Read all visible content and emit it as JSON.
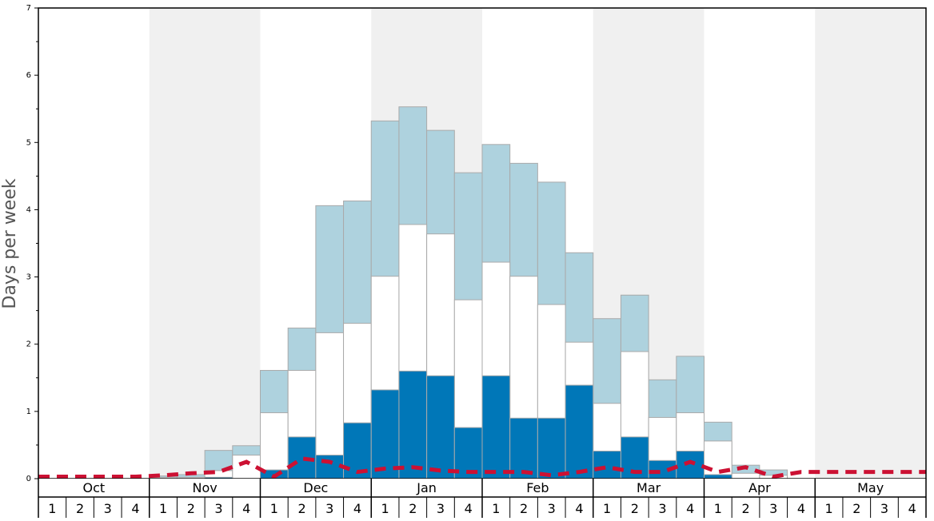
{
  "chart_data": {
    "type": "bar",
    "ylabel": "Days per week",
    "ylim": [
      0,
      7
    ],
    "y_ticks": [
      0,
      1,
      2,
      3,
      4,
      5,
      6,
      7
    ],
    "months": [
      "Oct",
      "Nov",
      "Dec",
      "Jan",
      "Feb",
      "Mar",
      "Apr",
      "May"
    ],
    "weeks_per_month": [
      "1",
      "2",
      "3",
      "4"
    ],
    "grid": false,
    "legend": "none",
    "colors": {
      "upper": "#aed2de",
      "middle": "#ffffff",
      "lower": "#0077b8",
      "line": "#cc1133",
      "band": "#f0f0f0",
      "bar_edge": "#aaaaaa"
    },
    "series": [
      {
        "values": [
          0,
          0,
          0,
          0,
          0,
          0,
          0.02,
          0,
          0.13,
          0.62,
          0.35,
          0.83,
          1.32,
          1.6,
          1.53,
          0.76,
          1.53,
          0.9,
          0.9,
          1.39,
          0.41,
          0.62,
          0.27,
          0.41,
          0.06,
          0,
          0,
          0,
          0,
          0,
          0,
          0
        ]
      },
      {
        "values": [
          0,
          0,
          0,
          0,
          0.02,
          0.02,
          0.12,
          0.35,
          0.98,
          1.61,
          2.17,
          2.31,
          3.01,
          3.78,
          3.64,
          2.66,
          3.22,
          3.01,
          2.59,
          2.03,
          1.12,
          1.89,
          0.91,
          0.98,
          0.56,
          0.08,
          0.05,
          0,
          0,
          0,
          0,
          0
        ]
      },
      {
        "values": [
          0,
          0,
          0,
          0,
          0.04,
          0.06,
          0.42,
          0.49,
          1.61,
          2.24,
          4.06,
          4.13,
          5.32,
          5.53,
          5.18,
          4.55,
          4.97,
          4.69,
          4.41,
          3.36,
          2.38,
          2.73,
          1.47,
          1.82,
          0.84,
          0.2,
          0.13,
          0,
          0,
          0,
          0,
          0
        ]
      },
      {
        "values": [
          0.03,
          0.03,
          0.03,
          0.03,
          0.05,
          0.08,
          0.1,
          0.25,
          0.03,
          0.3,
          0.25,
          0.1,
          0.15,
          0.17,
          0.12,
          0.1,
          0.1,
          0.1,
          0.05,
          0.1,
          0.17,
          0.1,
          0.1,
          0.25,
          0.1,
          0.17,
          0.03,
          0.1,
          0.1,
          0.1,
          0.1,
          0.1
        ]
      }
    ]
  }
}
